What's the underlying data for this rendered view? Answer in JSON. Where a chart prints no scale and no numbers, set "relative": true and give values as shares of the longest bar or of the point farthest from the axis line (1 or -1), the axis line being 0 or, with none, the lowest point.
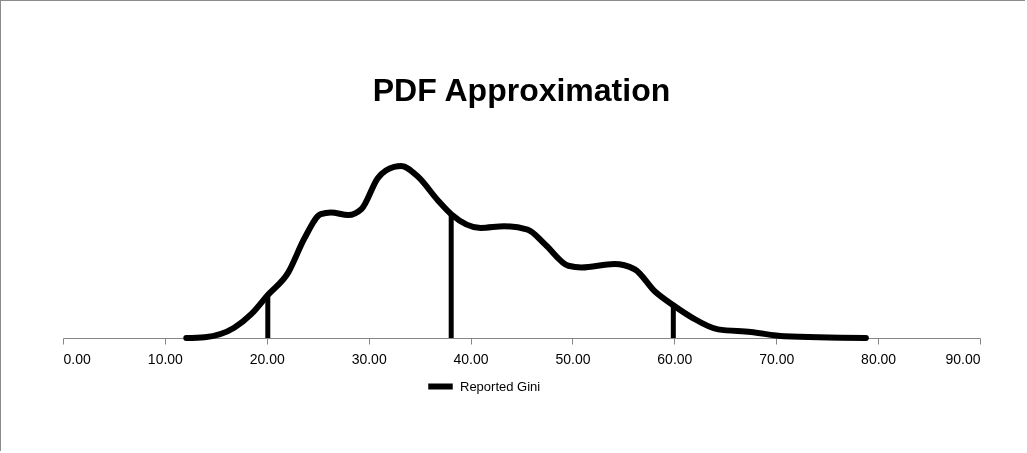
{
  "chart_data": {
    "type": "line",
    "title": "PDF Approximation",
    "relative": true,
    "legend": "bottom",
    "xlim": [
      0,
      90
    ],
    "xticks": [
      {
        "value": 0,
        "label": "0.00"
      },
      {
        "value": 10,
        "label": "10.00"
      },
      {
        "value": 20,
        "label": "20.00"
      },
      {
        "value": 30,
        "label": "30.00"
      },
      {
        "value": 40,
        "label": "40.00"
      },
      {
        "value": 50,
        "label": "50.00"
      },
      {
        "value": 60,
        "label": "60.00"
      },
      {
        "value": 70,
        "label": "70.00"
      },
      {
        "value": 80,
        "label": "80.00"
      },
      {
        "value": 90,
        "label": "90.00"
      }
    ],
    "series": [
      {
        "name": "Reported Gini",
        "color": "#000000",
        "x": [
          12.1,
          13.9,
          16.8,
          18.5,
          20.1,
          22.1,
          23.7,
          25.3,
          26.3,
          28.0,
          29.3,
          30.9,
          32.5,
          33.2,
          34.8,
          36.8,
          38.1,
          41.0,
          43.3,
          45.6,
          47.3,
          49.6,
          50.9,
          54.1,
          56.1,
          58.1,
          59.9,
          61.7,
          64.3,
          67.5,
          70.8,
          78.8
        ],
        "values": [
          0,
          0.005,
          0.06,
          0.14,
          0.25,
          0.38,
          0.58,
          0.72,
          0.73,
          0.715,
          0.75,
          0.93,
          0.995,
          1,
          0.94,
          0.8,
          0.72,
          0.64,
          0.65,
          0.63,
          0.545,
          0.42,
          0.41,
          0.43,
          0.4,
          0.27,
          0.19,
          0.12,
          0.05,
          0.035,
          0.01,
          0
        ]
      },
      {
        "type": "bar",
        "color": "#000000",
        "x": [
          20.1,
          38.1,
          59.9
        ],
        "values": [
          0.25,
          0.72,
          0.19
        ]
      }
    ]
  }
}
